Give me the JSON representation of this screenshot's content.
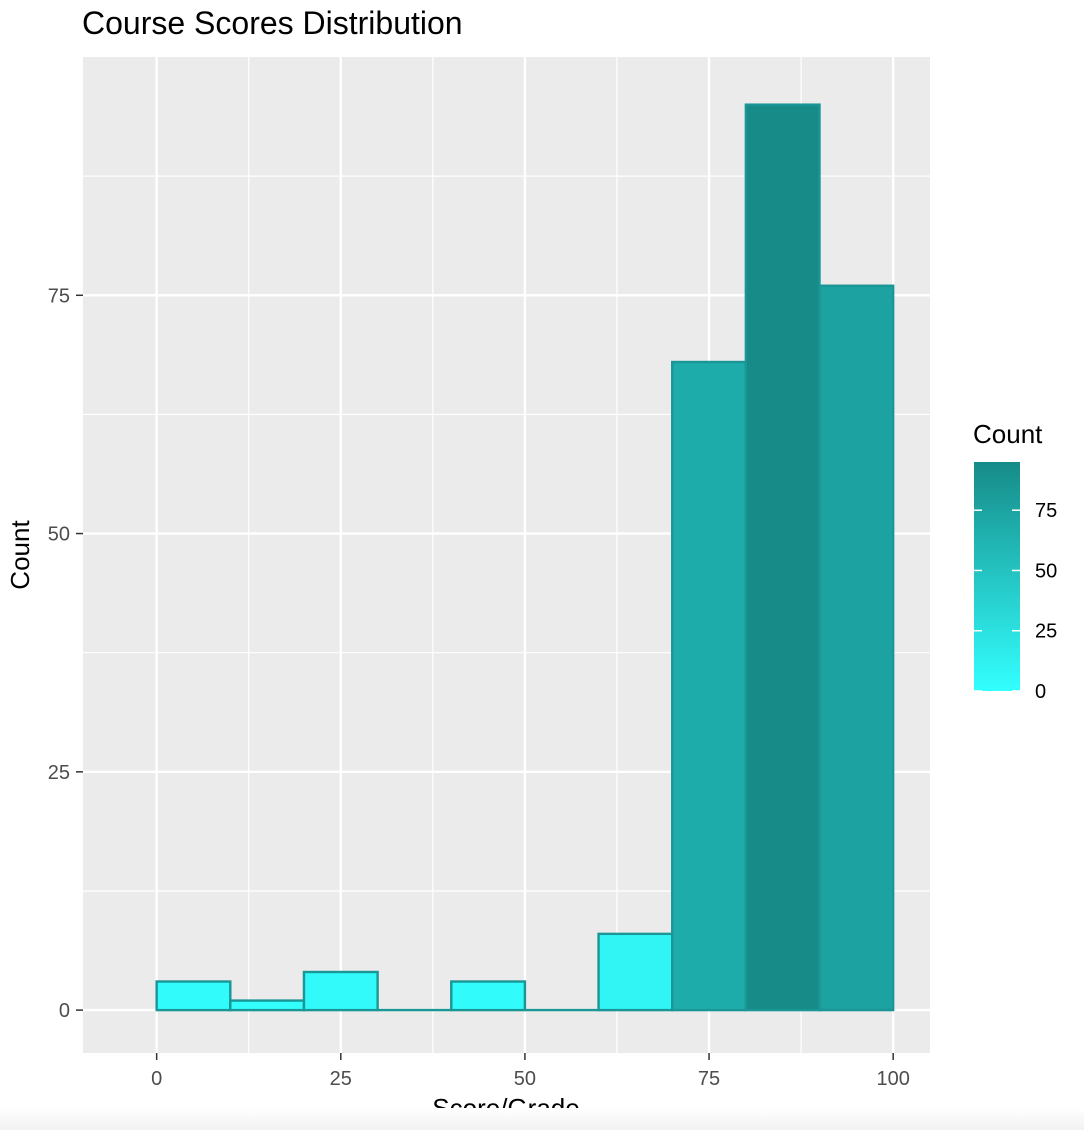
{
  "chart_data": {
    "type": "bar",
    "subtype": "histogram",
    "title": "Course Scores Distribution",
    "xlabel": "Score/Grade",
    "ylabel": "Count",
    "xlim": [
      -10,
      105
    ],
    "ylim": [
      -4.5,
      100
    ],
    "x_ticks": [
      0,
      25,
      50,
      75,
      100
    ],
    "y_ticks": [
      0,
      25,
      50,
      75
    ],
    "grid": true,
    "bins": [
      {
        "start": 0,
        "end": 10,
        "count": 3
      },
      {
        "start": 10,
        "end": 20,
        "count": 1
      },
      {
        "start": 20,
        "end": 30,
        "count": 4
      },
      {
        "start": 30,
        "end": 40,
        "count": 0
      },
      {
        "start": 40,
        "end": 50,
        "count": 3
      },
      {
        "start": 50,
        "end": 60,
        "count": 0
      },
      {
        "start": 60,
        "end": 70,
        "count": 8
      },
      {
        "start": 70,
        "end": 80,
        "count": 68
      },
      {
        "start": 80,
        "end": 90,
        "count": 95
      },
      {
        "start": 90,
        "end": 100,
        "count": 76
      }
    ],
    "legend": {
      "title": "Count",
      "position": "right",
      "range": [
        0,
        95
      ],
      "ticks": [
        0,
        25,
        50,
        75
      ],
      "color_low": "#33FFFF",
      "color_high": "#168B88"
    },
    "bar_outline_color": "#1a9696",
    "panel_background": "#EBEBEB",
    "grid_color": "#FFFFFF"
  }
}
